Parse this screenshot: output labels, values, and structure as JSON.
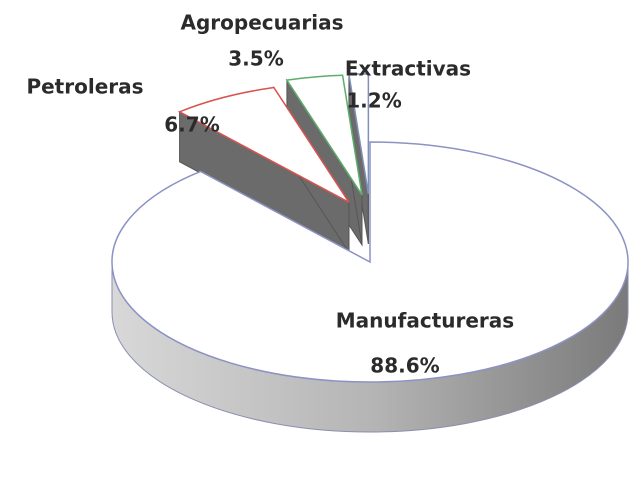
{
  "chart_data": {
    "type": "pie",
    "categories": [
      "Manufactureras",
      "Petroleras",
      "Agropecuarias",
      "Extractivas"
    ],
    "values": [
      88.6,
      6.7,
      3.5,
      1.2
    ],
    "value_labels": [
      "88.6%",
      "6.7%",
      "3.5%",
      "1.2%"
    ],
    "colors": [
      "#ffffff",
      "#ffffff",
      "#ffffff",
      "#ffffff"
    ],
    "edge_colors": [
      "#8c93c4",
      "#d9534f",
      "#5cae6a",
      "#7f8fb8"
    ]
  }
}
